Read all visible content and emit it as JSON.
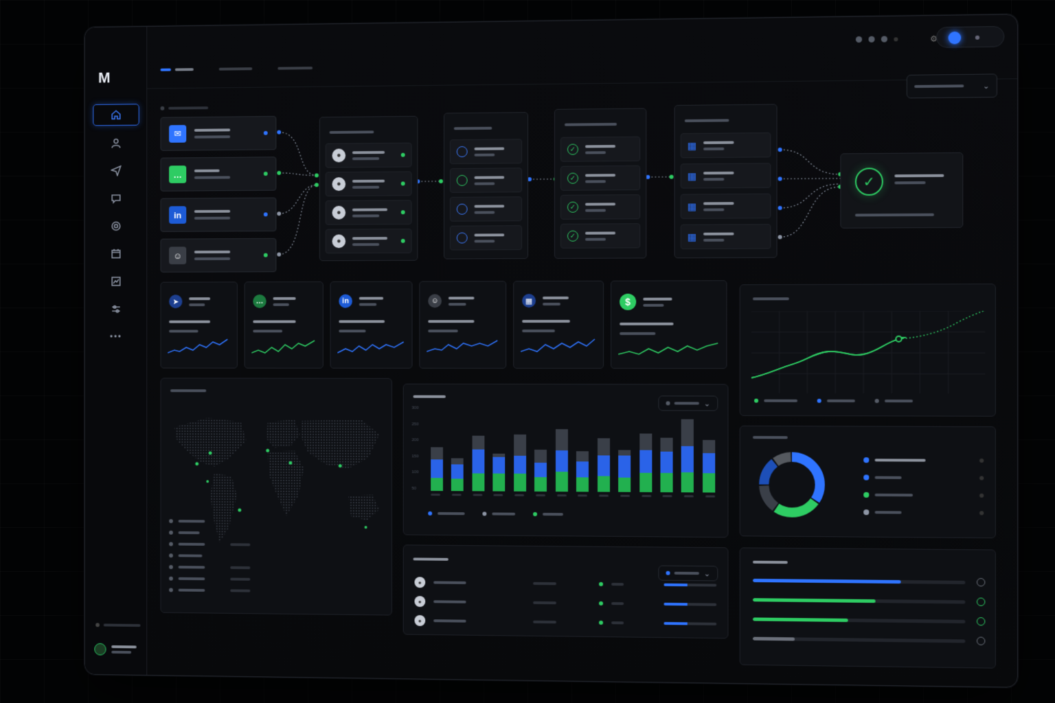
{
  "brand": {
    "logo_text": "M"
  },
  "sidebar": {
    "items": [
      {
        "name": "home"
      },
      {
        "name": "user"
      },
      {
        "name": "send"
      },
      {
        "name": "chat"
      },
      {
        "name": "target"
      },
      {
        "name": "calendar"
      },
      {
        "name": "analytics"
      },
      {
        "name": "settings"
      },
      {
        "name": "more"
      }
    ],
    "more_label": "•••"
  },
  "colors": {
    "accent_blue": "#2f74ff",
    "accent_green": "#2ecc63",
    "background": "#08090b"
  },
  "bar_chart": {
    "y_ticks": [
      "300",
      "250",
      "200",
      "150",
      "100",
      "50"
    ],
    "bars": [
      {
        "total": 0.6,
        "blue": 0.25,
        "green": 0.18
      },
      {
        "total": 0.45,
        "blue": 0.2,
        "green": 0.17
      },
      {
        "total": 0.76,
        "blue": 0.33,
        "green": 0.25
      },
      {
        "total": 0.52,
        "blue": 0.22,
        "green": 0.25
      },
      {
        "total": 0.78,
        "blue": 0.24,
        "green": 0.25
      },
      {
        "total": 0.58,
        "blue": 0.2,
        "green": 0.2
      },
      {
        "total": 0.86,
        "blue": 0.3,
        "green": 0.27
      },
      {
        "total": 0.56,
        "blue": 0.22,
        "green": 0.2
      },
      {
        "total": 0.74,
        "blue": 0.28,
        "green": 0.22
      },
      {
        "total": 0.58,
        "blue": 0.3,
        "green": 0.2
      },
      {
        "total": 0.8,
        "blue": 0.32,
        "green": 0.26
      },
      {
        "total": 0.75,
        "blue": 0.3,
        "green": 0.26
      },
      {
        "total": 1.0,
        "blue": 0.36,
        "green": 0.27
      },
      {
        "total": 0.72,
        "blue": 0.28,
        "green": 0.26
      }
    ]
  },
  "donut": {
    "segments": [
      {
        "color": "#2f74ff",
        "value": 0.35
      },
      {
        "color": "#2ecc63",
        "value": 0.25
      },
      {
        "color": "#3a3f48",
        "value": 0.15
      },
      {
        "color": "#1d4fb8",
        "value": 0.15
      },
      {
        "color": "#55595f",
        "value": 0.1
      }
    ]
  },
  "progress": {
    "bars": [
      {
        "color": "#2f74ff",
        "value": 0.7
      },
      {
        "color": "#2ecc63",
        "value": 0.58
      },
      {
        "color": "#2ecc63",
        "value": 0.45
      },
      {
        "color": "#6b707a",
        "value": 0.2
      }
    ]
  },
  "table": {
    "rows": [
      {
        "progress": 0.45
      },
      {
        "progress": 0.45
      },
      {
        "progress": 0.45
      }
    ]
  }
}
